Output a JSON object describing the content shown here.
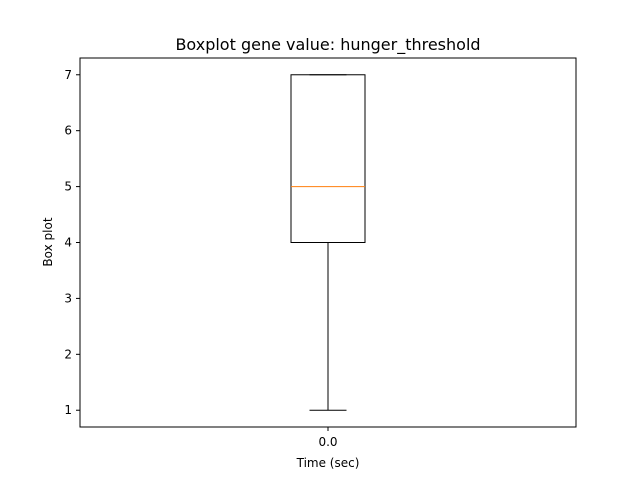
{
  "chart_data": {
    "type": "box",
    "title": "Boxplot gene value: hunger_threshold",
    "xlabel": "Time (sec)",
    "ylabel": "Box plot",
    "categories": [
      "0.0"
    ],
    "ylim": [
      0.7,
      7.3
    ],
    "yticks": [
      1,
      2,
      3,
      4,
      5,
      6,
      7
    ],
    "boxes": [
      {
        "label": "0.0",
        "whisker_low": 1,
        "q1": 4,
        "median": 5,
        "q3": 7,
        "whisker_high": 7
      }
    ],
    "grid": false,
    "colors": {
      "median": "#ff7f0e",
      "box": "#000000"
    }
  }
}
